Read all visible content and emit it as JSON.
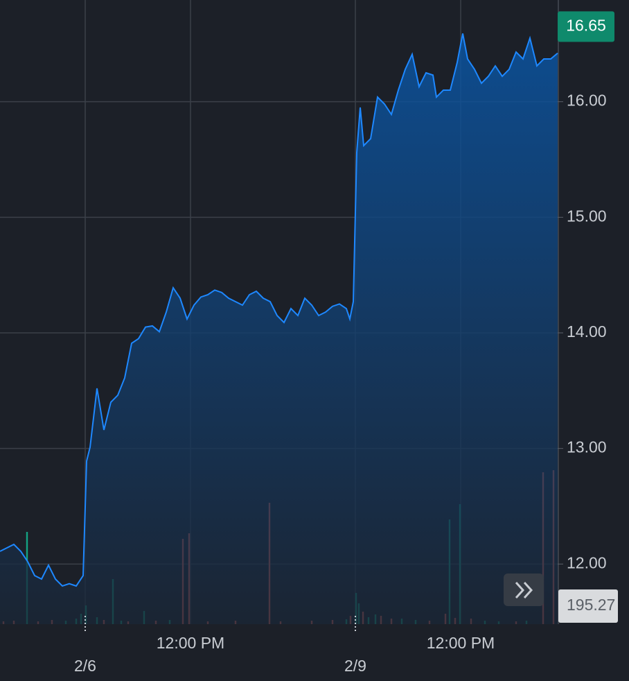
{
  "chart_data": {
    "type": "area",
    "series": [
      {
        "name": "Price",
        "color": "#1e88ff",
        "x": [
          0,
          10,
          20,
          30,
          40,
          50,
          60,
          70,
          80,
          90,
          100,
          110,
          120,
          125,
          130,
          140,
          150,
          160,
          170,
          180,
          190,
          200,
          210,
          220,
          230,
          240,
          250,
          260,
          270,
          280,
          290,
          300,
          310,
          320,
          330,
          340,
          350,
          360,
          370,
          380,
          390,
          400,
          410,
          420,
          430,
          440,
          450,
          460,
          470,
          480,
          490,
          500,
          505,
          510,
          515,
          520,
          525,
          535,
          545,
          555,
          565,
          575,
          585,
          595,
          605,
          615,
          625,
          630,
          640,
          650,
          660,
          668,
          675,
          685,
          695,
          705,
          715,
          725,
          735,
          745,
          755,
          765,
          775,
          785,
          795,
          805
        ],
        "values": [
          12.11,
          12.14,
          12.17,
          12.11,
          12.02,
          11.9,
          11.87,
          11.99,
          11.87,
          11.81,
          11.83,
          11.81,
          11.9,
          12.89,
          13.01,
          13.52,
          13.16,
          13.4,
          13.46,
          13.61,
          13.91,
          13.95,
          14.05,
          14.06,
          14.01,
          14.18,
          14.39,
          14.3,
          14.12,
          14.24,
          14.31,
          14.33,
          14.37,
          14.35,
          14.3,
          14.27,
          14.24,
          14.33,
          14.36,
          14.3,
          14.27,
          14.15,
          14.09,
          14.21,
          14.15,
          14.3,
          14.24,
          14.15,
          14.18,
          14.23,
          14.25,
          14.21,
          14.12,
          14.27,
          15.56,
          15.95,
          15.62,
          15.68,
          16.04,
          15.98,
          15.89,
          16.1,
          16.28,
          16.41,
          16.13,
          16.25,
          16.23,
          16.04,
          16.1,
          16.1,
          16.34,
          16.59,
          16.37,
          16.28,
          16.16,
          16.22,
          16.31,
          16.22,
          16.28,
          16.43,
          16.37,
          16.55,
          16.31,
          16.37,
          16.37,
          16.42
        ]
      }
    ],
    "xlim": [
      0,
      805
    ],
    "xticks": [
      {
        "value": 275,
        "label": "12:00 PM"
      },
      {
        "value": 665,
        "label": "12:00 PM"
      }
    ],
    "date_ticks": [
      {
        "value": 123,
        "label": "2/6"
      },
      {
        "value": 513,
        "label": "2/9"
      }
    ],
    "ylim": [
      11.48,
      16.88
    ],
    "yticks": [
      {
        "value": 12,
        "label": "12.00"
      },
      {
        "value": 13,
        "label": "13.00"
      },
      {
        "value": 14,
        "label": "14.00"
      },
      {
        "value": 15,
        "label": "15.00"
      },
      {
        "value": 16,
        "label": "16.00"
      }
    ],
    "grid": true,
    "last_price": 16.65,
    "volume": {
      "x": [
        5,
        20,
        39,
        55,
        75,
        95,
        110,
        117,
        124,
        140,
        150,
        163,
        175,
        185,
        208,
        225,
        245,
        264,
        273,
        300,
        340,
        389,
        405,
        450,
        480,
        500,
        506,
        514,
        518,
        524,
        532,
        542,
        550,
        565,
        580,
        600,
        620,
        643,
        649,
        657,
        664,
        680,
        700,
        720,
        745,
        760,
        784,
        799
      ],
      "values": [
        4,
        5,
        133,
        4,
        6,
        5,
        8,
        15,
        27,
        10,
        6,
        65,
        5,
        4,
        19,
        5,
        6,
        123,
        131,
        4,
        5,
        175,
        4,
        5,
        6,
        7,
        12,
        45,
        30,
        18,
        10,
        14,
        12,
        8,
        8,
        6,
        5,
        15,
        151,
        9,
        173,
        8,
        5,
        4,
        4,
        5,
        219,
        222
      ],
      "colors": [
        "#e0645a",
        "#e0645a",
        "#14a383",
        "#e0645a",
        "#e0645a",
        "#14a383",
        "#14a383",
        "#14a383",
        "#14a383",
        "#14a383",
        "#e0645a",
        "#14a383",
        "#14a383",
        "#e0645a",
        "#14a383",
        "#e0645a",
        "#14a383",
        "#e0645a",
        "#e0645a",
        "#e0645a",
        "#e0645a",
        "#e0645a",
        "#e0645a",
        "#e0645a",
        "#e0645a",
        "#14a383",
        "#e0645a",
        "#14a383",
        "#14a383",
        "#e0645a",
        "#14a383",
        "#14a383",
        "#e0645a",
        "#e0645a",
        "#14a383",
        "#14a383",
        "#e0645a",
        "#e0645a",
        "#14a383",
        "#e0645a",
        "#14a383",
        "#e0645a",
        "#14a383",
        "#14a383",
        "#e0645a",
        "#14a383",
        "#e0645a",
        "#e0645a"
      ],
      "ylim": [
        0,
        300
      ]
    },
    "last_volume": 195.27
  }
}
